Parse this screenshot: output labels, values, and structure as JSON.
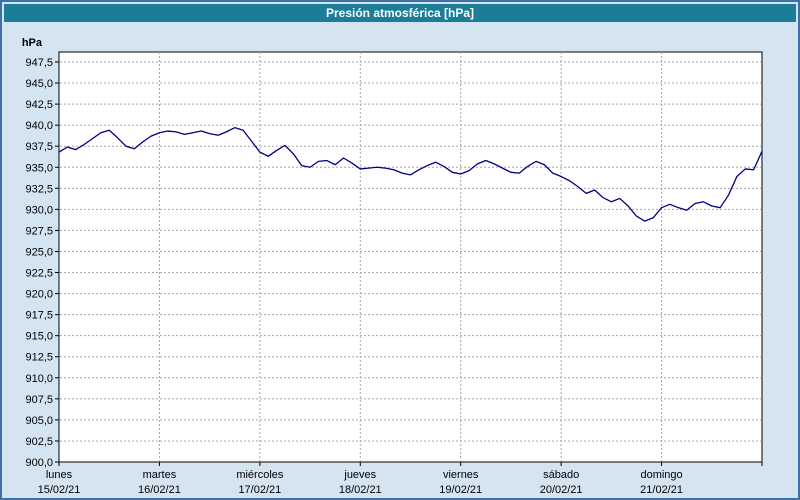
{
  "title_bar": {
    "text": "Presión atmosférica [hPa]",
    "bg": "#1c7d99",
    "fg": "#ffffff"
  },
  "colors": {
    "window_bg": "#d5e4f1",
    "window_border": "#3f6fa8",
    "plot_bg": "#ffffff",
    "axis": "#000000",
    "grid": "#a6a6a6",
    "line": "#000080",
    "text": "#000000"
  },
  "chart_data": {
    "type": "line",
    "title": "Presión atmosférica [hPa]",
    "ylabel": "hPa",
    "ylim": [
      900,
      948.7
    ],
    "ytick_min": 900,
    "ytick_max": 947.5,
    "ytick_step": 2.5,
    "ytick_labels": [
      "947,5",
      "945,0",
      "942,5",
      "940,0",
      "937,5",
      "935,0",
      "932,5",
      "930,0",
      "927,5",
      "925,0",
      "922,5",
      "920,0",
      "917,5",
      "915,0",
      "912,5",
      "910,0",
      "907,5",
      "905,0",
      "902,5",
      "900,0"
    ],
    "x_days": [
      {
        "name": "lunes",
        "date": "15/02/21"
      },
      {
        "name": "martes",
        "date": "16/02/21"
      },
      {
        "name": "miércoles",
        "date": "17/02/21"
      },
      {
        "name": "jueves",
        "date": "18/02/21"
      },
      {
        "name": "viernes",
        "date": "19/02/21"
      },
      {
        "name": "sábado",
        "date": "20/02/21"
      },
      {
        "name": "domingo",
        "date": "21/02/21"
      }
    ],
    "grid": true,
    "legend": false,
    "series": [
      {
        "name": "Presión atmosférica",
        "color": "#000080",
        "values": [
          936.8,
          937.4,
          937.1,
          937.7,
          938.4,
          939.1,
          939.4,
          938.5,
          937.5,
          937.2,
          938.0,
          938.7,
          939.1,
          939.3,
          939.2,
          938.9,
          939.1,
          939.3,
          939.0,
          938.8,
          939.2,
          939.7,
          939.4,
          938.1,
          936.8,
          936.3,
          937.0,
          937.6,
          936.6,
          935.2,
          935.0,
          935.7,
          935.8,
          935.3,
          936.1,
          935.5,
          934.8,
          934.9,
          935.0,
          934.9,
          934.7,
          934.3,
          934.1,
          934.7,
          935.2,
          935.6,
          935.1,
          934.4,
          934.2,
          934.6,
          935.4,
          935.8,
          935.4,
          934.9,
          934.4,
          934.3,
          935.1,
          935.7,
          935.3,
          934.3,
          933.9,
          933.4,
          932.7,
          931.9,
          932.3,
          931.4,
          930.9,
          931.3,
          930.4,
          929.2,
          928.6,
          929.0,
          930.2,
          930.6,
          930.2,
          929.9,
          930.7,
          930.9,
          930.4,
          930.2,
          931.7,
          933.9,
          934.8,
          934.7,
          936.9
        ]
      }
    ]
  }
}
